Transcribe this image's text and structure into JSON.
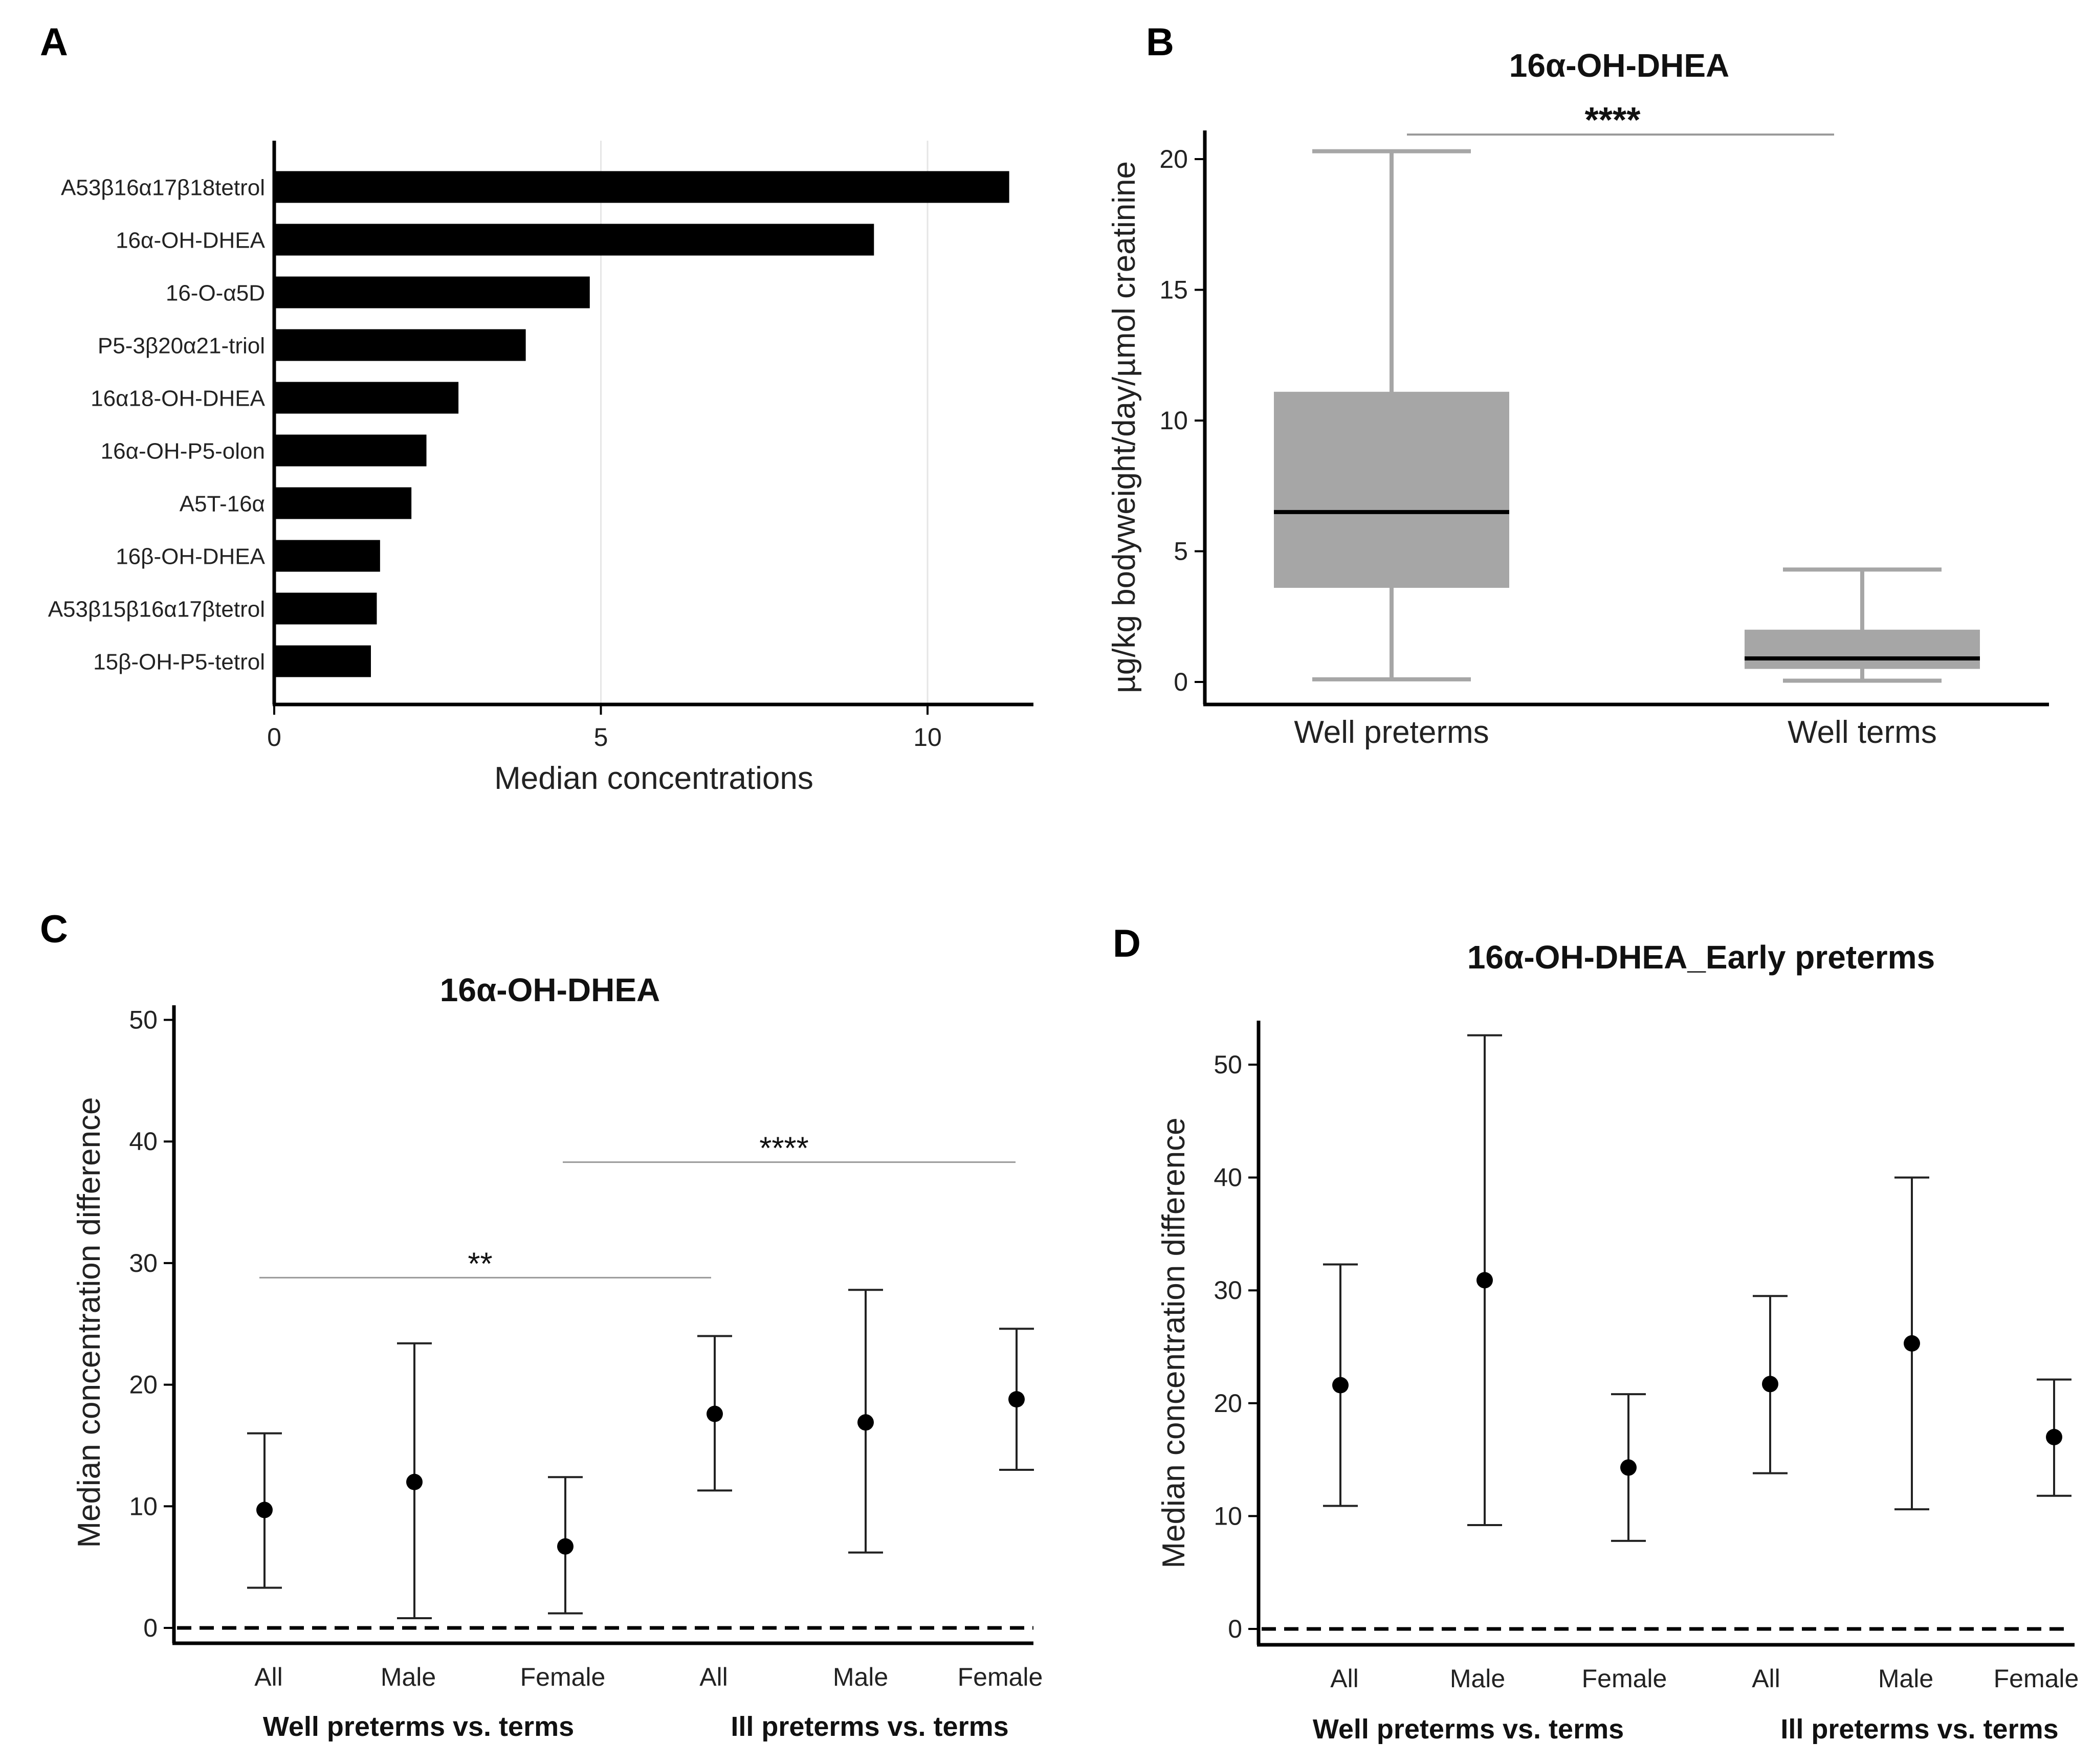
{
  "chart_data": [
    {
      "panel": "A",
      "type": "bar",
      "orientation": "horizontal",
      "title": "",
      "xlabel": "Median concentrations",
      "ylabel": "",
      "xlim": [
        0,
        11.5
      ],
      "xticks": [
        0,
        5,
        10
      ],
      "grid": "vertical",
      "categories": [
        "A53β16α17β18tetrol",
        "16α-OH-DHEA",
        "16-O-α5D",
        "P5-3β20α21-triol",
        "16α18-OH-DHEA",
        "16α-OH-P5-olon",
        "A5T-16α",
        "16β-OH-DHEA",
        "A53β15β16α17βtetrol",
        "15β-OH-P5-tetrol"
      ],
      "values": [
        11.25,
        9.18,
        4.83,
        3.85,
        2.82,
        2.33,
        2.1,
        1.62,
        1.57,
        1.48
      ]
    },
    {
      "panel": "B",
      "type": "box",
      "title": "16α-OH-DHEA",
      "xlabel": "",
      "ylabel": "µg/kg bodyweight/day/µmol creatinine",
      "ylim": [
        -1,
        21
      ],
      "yticks": [
        0,
        5,
        10,
        15,
        20
      ],
      "categories": [
        "Well preterms",
        "Well terms"
      ],
      "boxes": [
        {
          "min": 0.1,
          "q1": 3.6,
          "median": 6.5,
          "q3": 11.1,
          "max": 20.3
        },
        {
          "min": 0.05,
          "q1": 0.5,
          "median": 0.9,
          "q3": 2.0,
          "max": 4.3
        }
      ],
      "significance": [
        {
          "between": [
            0,
            1
          ],
          "label": "****"
        }
      ]
    },
    {
      "panel": "C",
      "type": "errorbar",
      "title": "16α-OH-DHEA",
      "xlabel": "",
      "ylabel": "Median concentration difference",
      "ylim": [
        -1,
        51
      ],
      "yticks": [
        0,
        10,
        20,
        30,
        40,
        50
      ],
      "reference_line": 0,
      "categories": [
        "All",
        "Male",
        "Female",
        "All",
        "Male",
        "Female"
      ],
      "groups": [
        {
          "label": "Well preterms vs. terms",
          "members": [
            0,
            1,
            2
          ]
        },
        {
          "label": "Ill preterms vs. terms",
          "members": [
            3,
            4,
            5
          ]
        }
      ],
      "values": [
        9.7,
        12.0,
        6.7,
        17.6,
        16.9,
        18.8
      ],
      "lower": [
        3.3,
        0.8,
        1.2,
        11.3,
        6.2,
        13.0
      ],
      "upper": [
        16.0,
        23.4,
        12.4,
        24.0,
        27.8,
        24.6
      ],
      "significance": [
        {
          "between": [
            0,
            3
          ],
          "level": 28.8,
          "label": "**"
        },
        {
          "between": [
            2,
            5
          ],
          "level": 38.3,
          "label": "****"
        }
      ]
    },
    {
      "panel": "D",
      "type": "errorbar",
      "title": "16α-OH-DHEA_Early preterms",
      "xlabel": "",
      "ylabel": "Median concentration difference",
      "ylim": [
        -1.5,
        54
      ],
      "yticks": [
        0,
        10,
        20,
        30,
        40,
        50
      ],
      "reference_line": 0,
      "categories": [
        "All",
        "Male",
        "Female",
        "All",
        "Male",
        "Female"
      ],
      "groups": [
        {
          "label": "Well preterms vs. terms",
          "members": [
            0,
            1,
            2
          ]
        },
        {
          "label": "Ill preterms vs. terms",
          "members": [
            3,
            4,
            5
          ]
        }
      ],
      "values": [
        21.6,
        30.9,
        14.3,
        21.7,
        25.3,
        17.0
      ],
      "lower": [
        10.9,
        9.2,
        7.8,
        13.8,
        10.6,
        11.8
      ],
      "upper": [
        32.3,
        52.6,
        20.8,
        29.5,
        40.0,
        22.1
      ]
    }
  ],
  "panel_labels": [
    "A",
    "B",
    "C",
    "D"
  ],
  "colors": {
    "bar": "#000000",
    "box": "#a6a6a6",
    "whisker": "#a6a6a6",
    "median": "#000000",
    "axis": "#000000",
    "grid": "#e6e6e6",
    "sigline": "#9a9a9a"
  }
}
